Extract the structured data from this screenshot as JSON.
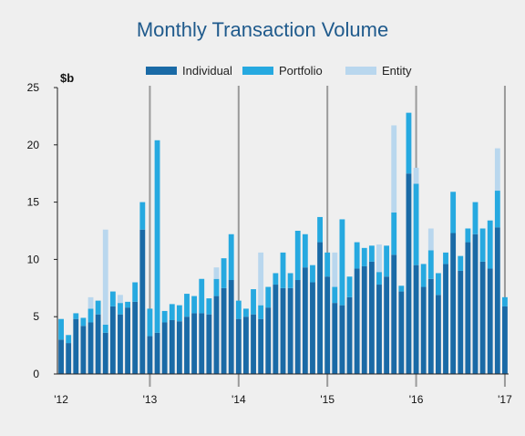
{
  "chart_data": {
    "type": "bar",
    "stacked": true,
    "title": "Monthly Transaction Volume",
    "y_unit_label": "$b",
    "ylim": [
      0,
      25
    ],
    "y_ticks": [
      "0",
      "5",
      "10",
      "15",
      "20",
      "25"
    ],
    "x_ticks": [
      {
        "label": "'12",
        "index": 0
      },
      {
        "label": "'13",
        "index": 12
      },
      {
        "label": "'14",
        "index": 24
      },
      {
        "label": "'15",
        "index": 36
      },
      {
        "label": "'16",
        "index": 48
      },
      {
        "label": "'17",
        "index": 60
      }
    ],
    "year_marker_indices": [
      12,
      24,
      36,
      48,
      60
    ],
    "series": [
      {
        "name": "Individual",
        "color": "#1a6aa6",
        "values": [
          3.0,
          2.7,
          4.8,
          4.2,
          4.5,
          5.2,
          3.6,
          5.9,
          5.2,
          5.8,
          6.3,
          12.6,
          3.3,
          3.6,
          4.5,
          4.7,
          4.6,
          5.0,
          5.3,
          5.3,
          5.2,
          6.8,
          7.5,
          8.2,
          4.8,
          5.0,
          5.2,
          4.8,
          5.8,
          7.8,
          7.5,
          7.5,
          8.2,
          9.3,
          8.0,
          11.5,
          8.5,
          6.2,
          6.0,
          6.7,
          9.2,
          9.4,
          9.8,
          7.8,
          8.5,
          10.4,
          7.2,
          17.5,
          9.5,
          7.6,
          8.3,
          6.9,
          9.6,
          12.3,
          9.0,
          11.5,
          12.2,
          9.8,
          9.2,
          12.8,
          5.9
        ]
      },
      {
        "name": "Portfolio",
        "color": "#26a9e0",
        "values": [
          1.8,
          0.7,
          0.5,
          0.7,
          1.2,
          1.2,
          0.7,
          1.3,
          1.0,
          0.5,
          1.7,
          2.4,
          2.4,
          16.8,
          1.0,
          1.4,
          1.4,
          2.0,
          1.5,
          3.0,
          1.4,
          1.5,
          2.6,
          4.0,
          1.6,
          0.7,
          2.2,
          1.2,
          1.8,
          1.0,
          3.1,
          1.3,
          4.3,
          2.9,
          1.5,
          2.2,
          2.1,
          1.4,
          7.5,
          1.8,
          2.3,
          1.6,
          1.4,
          1.1,
          2.7,
          3.7,
          0.5,
          5.3,
          7.1,
          2.0,
          2.5,
          1.9,
          1.0,
          3.6,
          1.3,
          1.2,
          2.8,
          2.9,
          4.2,
          3.2,
          0.8
        ]
      },
      {
        "name": "Entity",
        "color": "#b9d7ee",
        "values": [
          0.0,
          0.0,
          0.0,
          0.0,
          1.0,
          0.0,
          8.3,
          0.0,
          0.7,
          0.0,
          0.0,
          0.0,
          0.0,
          0.0,
          0.0,
          0.0,
          0.0,
          0.0,
          0.0,
          0.0,
          0.0,
          1.0,
          0.0,
          0.0,
          0.0,
          0.0,
          0.0,
          4.6,
          0.0,
          0.0,
          0.0,
          0.0,
          0.0,
          0.0,
          0.0,
          0.0,
          0.0,
          3.0,
          0.0,
          0.0,
          0.0,
          0.0,
          0.0,
          2.4,
          0.0,
          7.6,
          0.0,
          0.0,
          1.4,
          0.0,
          1.9,
          0.0,
          0.0,
          0.0,
          0.0,
          0.0,
          0.0,
          0.0,
          0.0,
          3.7,
          0.0
        ]
      }
    ],
    "gridlines": false,
    "legend_position": "top-center"
  }
}
